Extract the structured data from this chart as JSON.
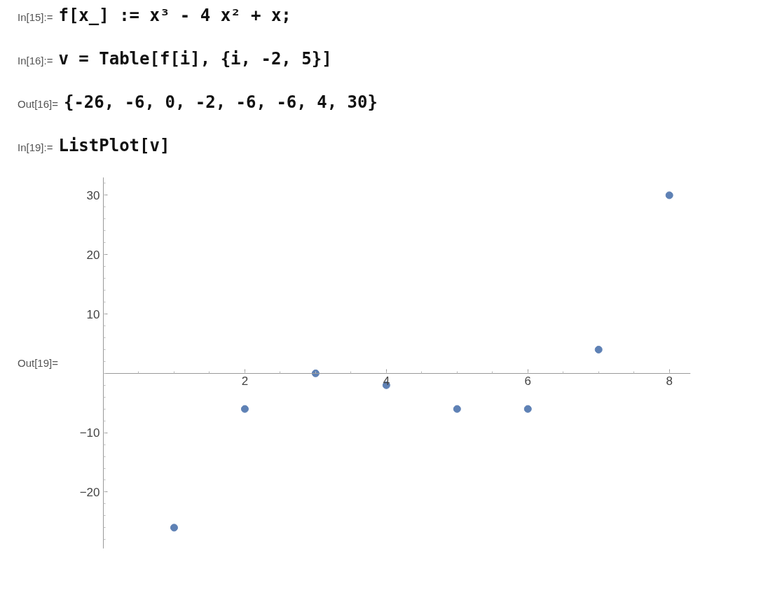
{
  "chart_data": {
    "type": "scatter",
    "annotations": [
      "In[15]:= f[x_] := x³ - 4 x² + x;",
      "In[16]:= v = Table[f[i], {i, -2, 5}]",
      "Out[16]= {-26, -6, 0, -2, -6, -6, 4, 30}",
      "In[19]:= ListPlot[v]",
      "Out[19]="
    ],
    "x": [
      1,
      2,
      3,
      4,
      5,
      6,
      7,
      8
    ],
    "series": [
      {
        "color": "#5e81b5",
        "values": [
          -26,
          -6,
          0,
          -2,
          -6,
          -6,
          4,
          30
        ]
      }
    ],
    "xlim": [
      0,
      8.3
    ],
    "ylim": [
      -29.5,
      33
    ],
    "xticks": [
      2,
      4,
      6,
      8
    ],
    "yticks": [
      -20,
      -10,
      10,
      20,
      30
    ],
    "marker": "circle",
    "grid": false
  }
}
